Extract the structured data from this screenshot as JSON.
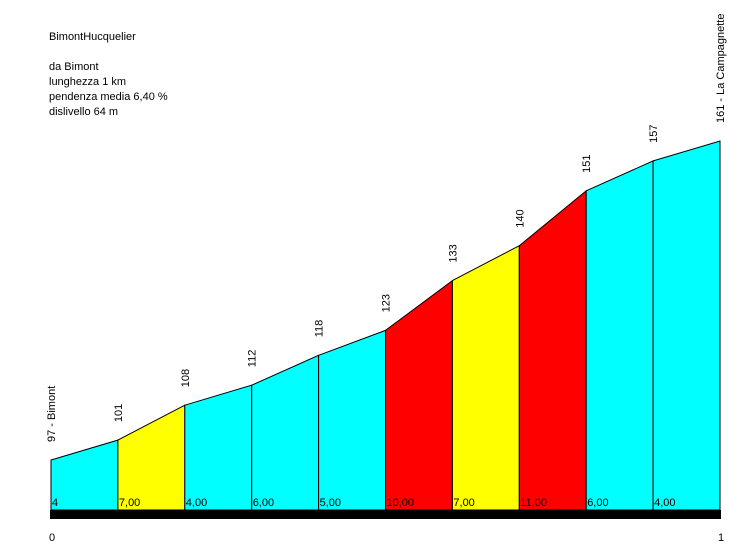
{
  "info": {
    "title": "BimontHucquelier",
    "from": "da Bimont",
    "length": "lunghezza 1 km",
    "gradient": "pendenza media 6,40 %",
    "elevation_gain": "dislivello 64 m"
  },
  "chart_data": {
    "type": "area",
    "title": "BimontHucquelier",
    "x_start_label": "0",
    "x_end_label": "1",
    "start_place": "Bimont",
    "end_place": "La Campagnette",
    "altitudes": [
      97,
      101,
      108,
      112,
      118,
      123,
      133,
      140,
      151,
      157,
      161
    ],
    "altitude_labels": [
      "97 - Bimont",
      "101",
      "108",
      "112",
      "118",
      "123",
      "133",
      "140",
      "151",
      "157",
      "161 - La Campagnette"
    ],
    "segment_gradients": [
      "4",
      "7,00",
      "4,00",
      "6,00",
      "5,00",
      "10,00",
      "7,00",
      "11,00",
      "6,00",
      "4,00"
    ],
    "segment_colors": [
      "#00ffff",
      "#ffff00",
      "#00ffff",
      "#00ffff",
      "#00ffff",
      "#ff0000",
      "#ffff00",
      "#ff0000",
      "#00ffff",
      "#00ffff"
    ]
  }
}
